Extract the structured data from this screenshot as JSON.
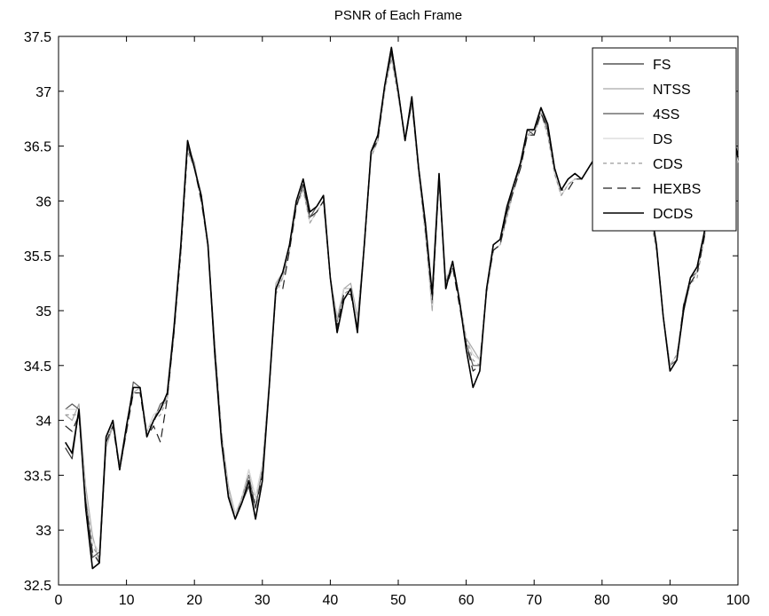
{
  "chart_data": {
    "type": "line",
    "title": "PSNR of Each Frame",
    "xlabel": "",
    "ylabel": "",
    "xlim": [
      0,
      100
    ],
    "ylim": [
      32.5,
      37.5
    ],
    "xticks": [
      0,
      10,
      20,
      30,
      40,
      50,
      60,
      70,
      80,
      90,
      100
    ],
    "yticks": [
      32.5,
      33,
      33.5,
      34,
      34.5,
      35,
      35.5,
      36,
      36.5,
      37,
      37.5
    ],
    "xtick_labels": [
      "0",
      "10",
      "20",
      "30",
      "40",
      "50",
      "60",
      "70",
      "80",
      "90",
      "100"
    ],
    "ytick_labels": [
      "32.5",
      "33",
      "33.5",
      "34",
      "34.5",
      "35",
      "35.5",
      "36",
      "36.5",
      "37",
      "37.5"
    ],
    "grid": false,
    "legend_position": "top-right",
    "x": [
      1,
      2,
      3,
      4,
      5,
      6,
      7,
      8,
      9,
      10,
      11,
      12,
      13,
      14,
      15,
      16,
      17,
      18,
      19,
      20,
      21,
      22,
      23,
      24,
      25,
      26,
      27,
      28,
      29,
      30,
      31,
      32,
      33,
      34,
      35,
      36,
      37,
      38,
      39,
      40,
      41,
      42,
      43,
      44,
      45,
      46,
      47,
      48,
      49,
      50,
      51,
      52,
      53,
      54,
      55,
      56,
      57,
      58,
      59,
      60,
      61,
      62,
      63,
      64,
      65,
      66,
      67,
      68,
      69,
      70,
      71,
      72,
      73,
      74,
      75,
      76,
      77,
      78,
      79,
      80,
      81,
      82,
      83,
      84,
      85,
      86,
      87,
      88,
      89,
      90,
      91,
      92,
      93,
      94,
      95,
      96,
      97,
      98,
      99,
      100
    ],
    "series": [
      {
        "name": "FS",
        "color": "#333333",
        "dash": "",
        "width": 1.2,
        "values": [
          33.75,
          33.65,
          34.1,
          33.2,
          32.65,
          32.7,
          33.8,
          34.0,
          33.55,
          33.95,
          34.3,
          34.3,
          33.85,
          34.0,
          34.1,
          34.2,
          34.85,
          35.6,
          36.55,
          36.3,
          36.05,
          35.6,
          34.6,
          33.8,
          33.3,
          33.1,
          33.25,
          33.4,
          33.1,
          33.45,
          34.3,
          35.2,
          35.35,
          35.6,
          36.0,
          36.2,
          35.9,
          35.95,
          36.05,
          35.3,
          34.8,
          35.1,
          35.2,
          34.8,
          35.6,
          36.45,
          36.6,
          37.05,
          37.4,
          37.0,
          36.55,
          36.95,
          36.3,
          35.8,
          35.15,
          36.25,
          35.2,
          35.45,
          35.1,
          34.65,
          34.3,
          34.45,
          35.2,
          35.6,
          35.65,
          35.95,
          36.15,
          36.35,
          36.65,
          36.65,
          36.85,
          36.7,
          36.3,
          36.1,
          36.2,
          36.25,
          36.2,
          36.3,
          36.4,
          36.5,
          36.6,
          36.65,
          36.5,
          36.35,
          36.3,
          36.2,
          36.0,
          35.6,
          34.95,
          34.45,
          34.55,
          35.0,
          35.3,
          35.4,
          35.7,
          36.05,
          36.3,
          36.5,
          36.7,
          36.4
        ]
      },
      {
        "name": "NTSS",
        "color": "#a9a9a9",
        "dash": "",
        "width": 1.2,
        "values": [
          34.05,
          34.0,
          34.15,
          33.4,
          32.95,
          32.7,
          33.75,
          33.95,
          33.6,
          33.95,
          34.25,
          34.3,
          33.9,
          34.05,
          34.1,
          34.25,
          34.85,
          35.55,
          36.5,
          36.35,
          36.0,
          35.6,
          34.7,
          33.9,
          33.4,
          33.15,
          33.3,
          33.55,
          33.3,
          33.6,
          34.35,
          35.25,
          35.35,
          35.6,
          35.95,
          36.1,
          35.85,
          35.9,
          36.0,
          35.3,
          34.95,
          35.2,
          35.25,
          34.95,
          35.6,
          36.4,
          36.55,
          37.0,
          37.35,
          36.95,
          36.6,
          36.9,
          36.25,
          35.7,
          35.0,
          36.2,
          35.3,
          35.4,
          35.1,
          34.75,
          34.65,
          34.55,
          35.15,
          35.55,
          35.6,
          35.85,
          36.1,
          36.3,
          36.6,
          36.65,
          36.8,
          36.65,
          36.25,
          36.05,
          36.15,
          36.2,
          36.2,
          36.3,
          36.4,
          36.5,
          36.55,
          36.6,
          36.45,
          36.3,
          36.25,
          36.1,
          35.9,
          35.55,
          34.95,
          34.5,
          34.6,
          35.0,
          35.25,
          35.35,
          35.65,
          36.0,
          36.25,
          36.45,
          36.65,
          36.35
        ]
      },
      {
        "name": "4SS",
        "color": "#555555",
        "dash": "",
        "width": 1.2,
        "values": [
          34.1,
          34.15,
          34.1,
          33.3,
          32.75,
          32.8,
          33.85,
          34.0,
          33.55,
          33.9,
          34.35,
          34.3,
          33.85,
          34.0,
          34.15,
          34.2,
          34.8,
          35.6,
          36.5,
          36.3,
          36.05,
          35.55,
          34.6,
          33.85,
          33.35,
          33.1,
          33.3,
          33.5,
          33.2,
          33.55,
          34.3,
          35.2,
          35.3,
          35.55,
          35.95,
          36.15,
          35.85,
          35.95,
          36.05,
          35.3,
          34.9,
          35.2,
          35.2,
          34.85,
          35.6,
          36.45,
          36.55,
          37.05,
          37.35,
          37.0,
          36.55,
          36.9,
          36.3,
          35.75,
          35.1,
          36.2,
          35.25,
          35.45,
          35.1,
          34.7,
          34.5,
          34.5,
          35.2,
          35.6,
          35.65,
          35.9,
          36.15,
          36.3,
          36.65,
          36.6,
          36.85,
          36.65,
          36.3,
          36.1,
          36.2,
          36.25,
          36.2,
          36.3,
          36.4,
          36.5,
          36.6,
          36.6,
          36.5,
          36.3,
          36.25,
          36.15,
          35.95,
          35.6,
          34.95,
          34.5,
          34.55,
          35.05,
          35.3,
          35.35,
          35.65,
          36.05,
          36.3,
          36.5,
          36.7,
          36.4
        ]
      },
      {
        "name": "DS",
        "color": "#d8d8d8",
        "dash": "",
        "width": 1.2,
        "values": [
          34.1,
          34.1,
          34.1,
          33.35,
          32.9,
          32.8,
          33.8,
          34.0,
          33.6,
          33.9,
          34.3,
          34.3,
          33.9,
          34.05,
          34.1,
          34.2,
          34.85,
          35.55,
          36.45,
          36.3,
          36.0,
          35.55,
          34.65,
          33.9,
          33.35,
          33.15,
          33.3,
          33.55,
          33.3,
          33.6,
          34.3,
          35.2,
          35.3,
          35.55,
          35.95,
          36.1,
          35.8,
          35.9,
          36.0,
          35.3,
          34.95,
          35.2,
          35.2,
          34.9,
          35.6,
          36.4,
          36.55,
          37.0,
          37.3,
          36.95,
          36.6,
          36.9,
          36.25,
          35.7,
          35.05,
          36.2,
          35.3,
          35.4,
          35.1,
          34.75,
          34.6,
          34.55,
          35.15,
          35.55,
          35.6,
          35.85,
          36.1,
          36.3,
          36.6,
          36.6,
          36.8,
          36.6,
          36.25,
          36.05,
          36.15,
          36.2,
          36.2,
          36.3,
          36.4,
          36.5,
          36.55,
          36.6,
          36.45,
          36.3,
          36.25,
          36.1,
          35.9,
          35.55,
          34.95,
          34.5,
          34.6,
          35.0,
          35.25,
          35.35,
          35.65,
          36.0,
          36.25,
          36.45,
          36.65,
          36.35
        ]
      },
      {
        "name": "CDS",
        "color": "#9a9a9a",
        "dash": "4,4",
        "width": 1.2,
        "values": [
          34.05,
          34.05,
          34.05,
          33.3,
          32.85,
          32.75,
          33.8,
          33.95,
          33.6,
          33.9,
          34.25,
          34.25,
          33.9,
          34.0,
          34.05,
          34.2,
          34.8,
          35.5,
          36.45,
          36.3,
          36.0,
          35.6,
          34.65,
          33.85,
          33.35,
          33.1,
          33.3,
          33.5,
          33.25,
          33.55,
          34.3,
          35.15,
          35.3,
          35.55,
          35.95,
          36.1,
          35.8,
          35.9,
          36.0,
          35.3,
          34.9,
          35.15,
          35.2,
          34.85,
          35.55,
          36.4,
          36.55,
          37.0,
          37.3,
          36.95,
          36.55,
          36.9,
          36.25,
          35.7,
          35.05,
          36.2,
          35.25,
          35.4,
          35.1,
          34.75,
          34.55,
          34.5,
          35.15,
          35.55,
          35.6,
          35.85,
          36.1,
          36.3,
          36.6,
          36.6,
          36.8,
          36.6,
          36.25,
          36.05,
          36.15,
          36.2,
          36.2,
          36.3,
          36.4,
          36.5,
          36.55,
          36.6,
          36.45,
          36.3,
          36.25,
          36.1,
          35.9,
          35.55,
          34.95,
          34.5,
          34.6,
          35.0,
          35.25,
          35.3,
          35.65,
          36.0,
          36.25,
          36.45,
          36.65,
          36.35
        ]
      },
      {
        "name": "HEXBS",
        "color": "#222222",
        "dash": "10,6",
        "width": 1.2,
        "values": [
          33.95,
          33.9,
          34.05,
          33.25,
          32.8,
          32.7,
          33.8,
          33.95,
          33.55,
          33.9,
          34.25,
          34.25,
          33.85,
          33.95,
          33.8,
          34.2,
          34.8,
          35.55,
          36.5,
          36.3,
          36.0,
          35.6,
          34.65,
          33.85,
          33.3,
          33.1,
          33.25,
          33.45,
          33.2,
          33.5,
          34.3,
          35.2,
          35.2,
          35.55,
          35.95,
          36.15,
          35.85,
          35.9,
          36.0,
          35.3,
          34.85,
          35.15,
          35.15,
          34.85,
          35.6,
          36.45,
          36.55,
          37.05,
          37.35,
          37.0,
          36.55,
          36.9,
          36.3,
          35.75,
          35.1,
          36.2,
          35.2,
          35.4,
          35.05,
          34.7,
          34.45,
          34.5,
          35.2,
          35.55,
          35.6,
          35.9,
          36.1,
          36.3,
          36.6,
          36.6,
          36.8,
          36.65,
          36.3,
          36.1,
          36.1,
          36.2,
          36.2,
          36.3,
          36.4,
          36.5,
          36.55,
          36.6,
          36.5,
          36.3,
          36.25,
          36.15,
          35.95,
          35.6,
          34.95,
          34.45,
          34.55,
          35.05,
          35.25,
          35.35,
          35.65,
          36.0,
          36.3,
          36.5,
          36.65,
          36.4
        ]
      },
      {
        "name": "DCDS",
        "color": "#000000",
        "dash": "",
        "width": 1.6,
        "values": [
          33.8,
          33.7,
          34.1,
          33.2,
          32.65,
          32.7,
          33.85,
          34.0,
          33.55,
          33.95,
          34.3,
          34.3,
          33.85,
          34.0,
          34.1,
          34.25,
          34.85,
          35.6,
          36.55,
          36.3,
          36.05,
          35.6,
          34.6,
          33.8,
          33.3,
          33.1,
          33.25,
          33.45,
          33.1,
          33.45,
          34.3,
          35.2,
          35.35,
          35.6,
          36.0,
          36.2,
          35.9,
          35.95,
          36.05,
          35.3,
          34.8,
          35.1,
          35.2,
          34.8,
          35.6,
          36.45,
          36.6,
          37.05,
          37.4,
          37.0,
          36.55,
          36.95,
          36.3,
          35.8,
          35.15,
          36.25,
          35.2,
          35.45,
          35.1,
          34.65,
          34.3,
          34.45,
          35.2,
          35.6,
          35.65,
          35.95,
          36.15,
          36.35,
          36.65,
          36.65,
          36.85,
          36.7,
          36.3,
          36.1,
          36.2,
          36.25,
          36.2,
          36.3,
          36.4,
          36.5,
          36.6,
          36.65,
          36.5,
          36.35,
          36.3,
          36.2,
          36.0,
          35.6,
          34.95,
          34.45,
          34.55,
          35.0,
          35.3,
          35.4,
          35.7,
          36.05,
          36.3,
          36.5,
          36.7,
          36.4
        ]
      }
    ]
  }
}
